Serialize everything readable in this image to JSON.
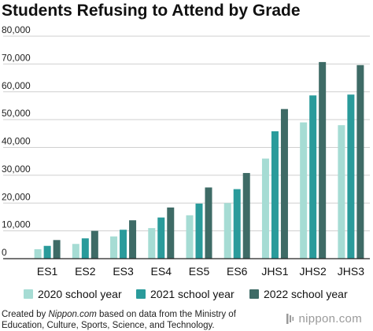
{
  "chart_data": {
    "type": "bar",
    "title": "Students Refusing to Attend by Grade",
    "xlabel": "",
    "ylabel": "",
    "categories": [
      "ES1",
      "ES2",
      "ES3",
      "ES4",
      "ES5",
      "ES6",
      "JHS1",
      "JHS2",
      "JHS3"
    ],
    "series": [
      {
        "name": "2020 school year",
        "color": "#a6dcd4",
        "values": [
          3400,
          5300,
          8000,
          11000,
          15600,
          20000,
          36000,
          49000,
          48000
        ]
      },
      {
        "name": "2021 school year",
        "color": "#2a9b9b",
        "values": [
          4600,
          7300,
          10400,
          14800,
          19800,
          25000,
          45800,
          58700,
          59000
        ]
      },
      {
        "name": "2022 school year",
        "color": "#3e6b66",
        "values": [
          6700,
          10000,
          13800,
          18400,
          25600,
          30800,
          53800,
          70700,
          69600
        ]
      }
    ],
    "ylim": [
      0,
      80000
    ],
    "yticks": [
      0,
      10000,
      20000,
      30000,
      40000,
      50000,
      60000,
      70000,
      80000
    ],
    "ytick_labels": [
      "0",
      "10,000",
      "20,000",
      "30,000",
      "40,000",
      "50,000",
      "60,000",
      "70,000",
      "80,000"
    ],
    "grid": true,
    "legend_position": "bottom"
  },
  "source": {
    "prefix": "Created by ",
    "site": "Nippon.com",
    "rest": " based on data from the Ministry of Education, Culture, Sports, Science, and Technology."
  },
  "brand": {
    "name": "nippon.com",
    "icon": "nippon-logo-icon"
  }
}
